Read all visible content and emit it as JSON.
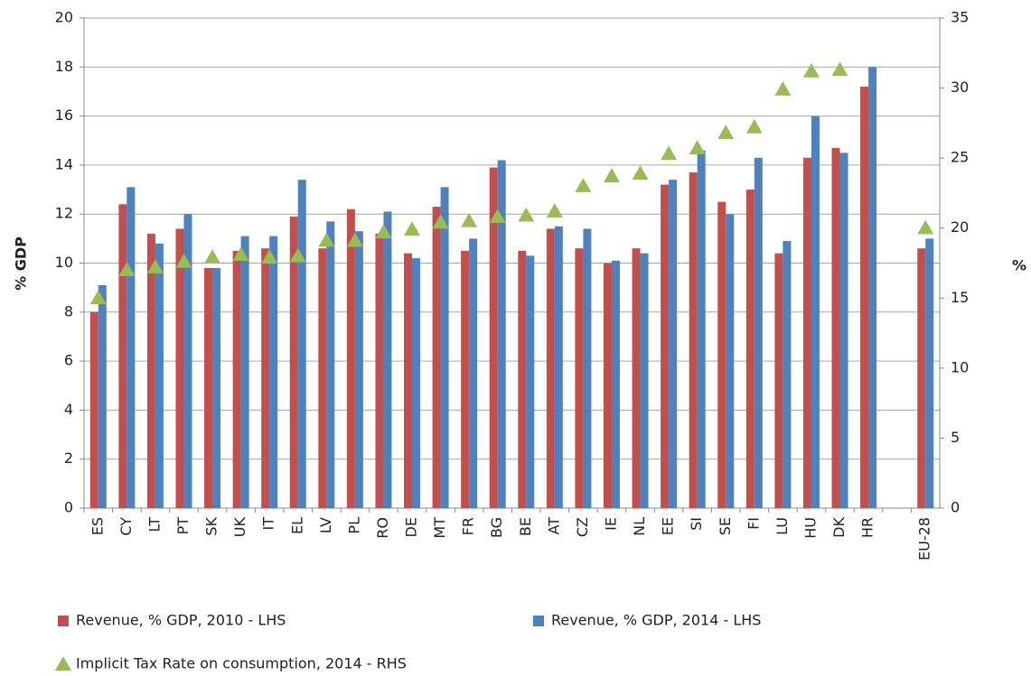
{
  "chart_data": {
    "type": "bar",
    "categories": [
      "ES",
      "CY",
      "LT",
      "PT",
      "SK",
      "UK",
      "IT",
      "EL",
      "LV",
      "PL",
      "RO",
      "DE",
      "MT",
      "FR",
      "BG",
      "BE",
      "AT",
      "CZ",
      "IE",
      "NL",
      "EE",
      "SI",
      "SE",
      "FI",
      "LU",
      "HU",
      "DK",
      "HR",
      null,
      "EU-28"
    ],
    "series": [
      {
        "name": "Revenue, % GDP, 2010 - LHS",
        "color": "#c0504d",
        "type": "bar",
        "values": [
          8.0,
          12.4,
          11.2,
          11.4,
          9.8,
          10.5,
          10.6,
          11.9,
          10.6,
          12.2,
          11.2,
          10.4,
          12.3,
          10.5,
          13.9,
          10.5,
          11.4,
          10.6,
          10.0,
          10.6,
          13.2,
          13.7,
          12.5,
          13.0,
          10.4,
          14.3,
          14.7,
          17.2,
          null,
          10.6
        ]
      },
      {
        "name": "Revenue, % GDP, 2014 - LHS",
        "color": "#4f81bd",
        "type": "bar",
        "values": [
          9.1,
          13.1,
          10.8,
          12.0,
          9.8,
          11.1,
          11.1,
          13.4,
          11.7,
          11.3,
          12.1,
          10.2,
          13.1,
          11.0,
          14.2,
          10.3,
          11.5,
          11.4,
          10.1,
          10.4,
          13.4,
          14.6,
          12.0,
          14.3,
          10.9,
          16.0,
          14.5,
          18.0,
          null,
          11.0
        ]
      },
      {
        "name": "Implicit Tax Rate on consumption, 2014 - RHS",
        "color": "#9bbb59",
        "type": "scatter",
        "marker": "triangle",
        "axis": "y2",
        "values": [
          15.0,
          17.0,
          17.2,
          17.6,
          17.9,
          18.1,
          17.9,
          18.0,
          19.1,
          19.1,
          19.7,
          19.9,
          20.4,
          20.5,
          20.8,
          20.9,
          21.2,
          23.0,
          23.7,
          23.9,
          25.3,
          25.7,
          26.8,
          27.2,
          29.9,
          31.2,
          31.3,
          null,
          null,
          20.0
        ]
      }
    ],
    "ylabel": "% GDP",
    "y2label": "%",
    "ylim": [
      0,
      20
    ],
    "yticks": [
      0,
      2,
      4,
      6,
      8,
      10,
      12,
      14,
      16,
      18,
      20
    ],
    "y2lim": [
      0,
      35
    ],
    "y2ticks": [
      0,
      5,
      10,
      15,
      20,
      25,
      30,
      35
    ],
    "grid": true
  }
}
